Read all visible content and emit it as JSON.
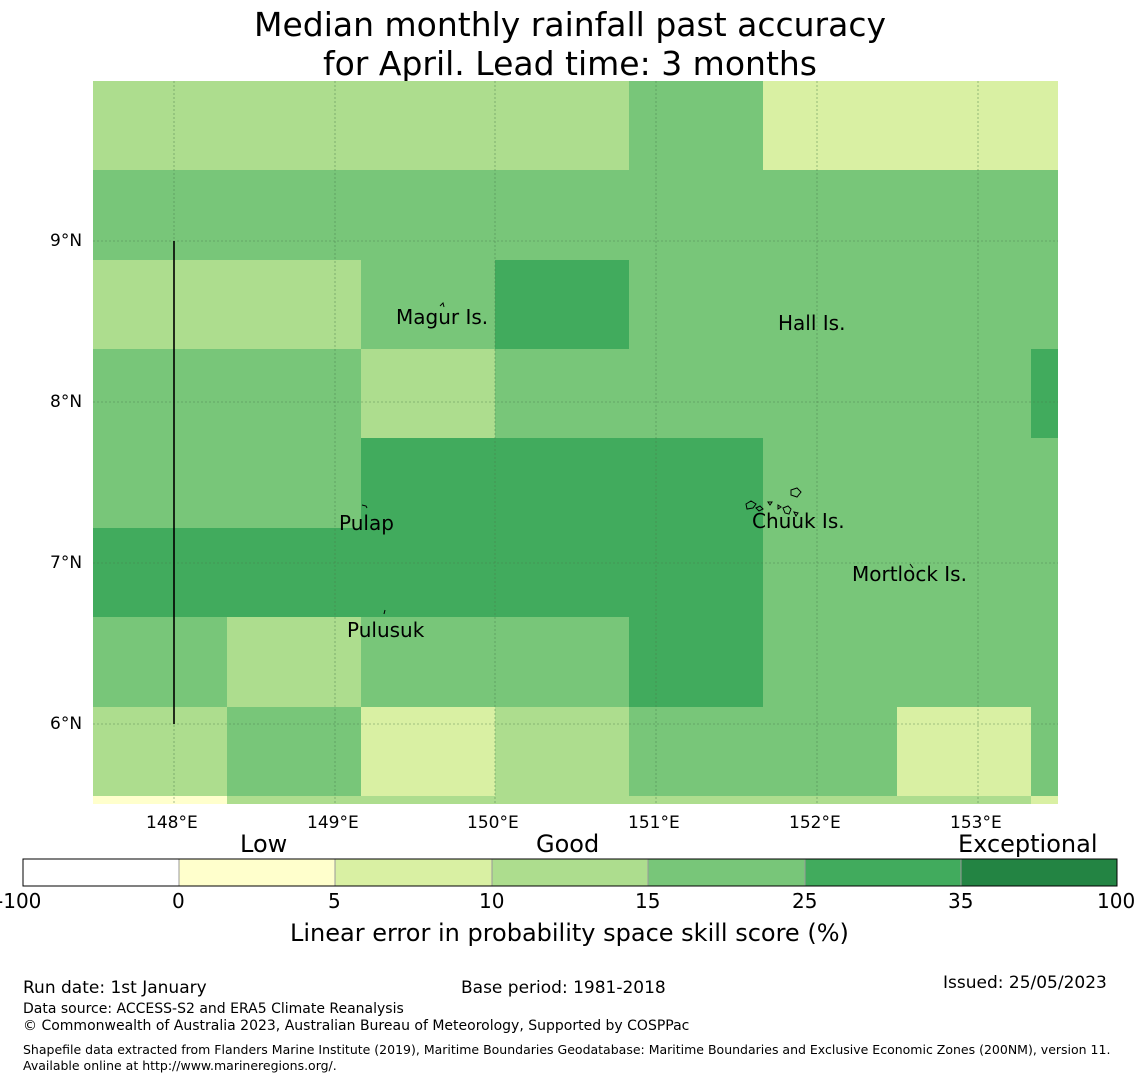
{
  "title_line1": "Median monthly rainfall past accuracy",
  "title_line2": "for April. Lead time: 3 months",
  "colors": {
    "c1": "#ffffcc",
    "c2": "#d9f0a3",
    "c3": "#addd8e",
    "c4": "#78c679",
    "c5": "#41ab5d",
    "c6": "#238443",
    "white": "#ffffff"
  },
  "map": {
    "lat_labels": [
      "9°N",
      "8°N",
      "7°N",
      "6°N"
    ],
    "lon_labels": [
      "148°E",
      "149°E",
      "150°E",
      "151°E",
      "152°E",
      "153°E"
    ],
    "skill_grid": [
      [
        "c3",
        "c3",
        "c3",
        "c3",
        "c4",
        "c2",
        "c2"
      ],
      [
        "c4",
        "c4",
        "c4",
        "c4",
        "c4",
        "c4",
        "c4"
      ],
      [
        "c3",
        "c3",
        "c4",
        "c5",
        "c4",
        "c4",
        "c4"
      ],
      [
        "c4",
        "c4",
        "c3",
        "c4",
        "c4",
        "c4",
        "c4"
      ],
      [
        "c4",
        "c4",
        "c5",
        "c5",
        "c5",
        "c4",
        "c4"
      ],
      [
        "c5",
        "c5",
        "c5",
        "c5",
        "c5",
        "c4",
        "c4"
      ],
      [
        "c4",
        "c3",
        "c4",
        "c4",
        "c5",
        "c4",
        "c4"
      ],
      [
        "c3",
        "c4",
        "c2",
        "c3",
        "c4",
        "c4",
        "c2"
      ]
    ],
    "places": [
      "Magur Is.",
      "Hall Is.",
      "Pulap",
      "Chuuk Is.",
      "Mortlock Is.",
      "Pulusuk"
    ]
  },
  "colorbar": {
    "categories": [
      "Low",
      "Good",
      "Exceptional"
    ],
    "ticks": [
      "-100",
      "0",
      "5",
      "10",
      "15",
      "25",
      "35",
      "100"
    ],
    "label": "Linear error in probability space skill score (%)"
  },
  "footer": {
    "run_date": "Run date: 1st January",
    "base_period": "Base period: 1981-2018",
    "issued": "Issued: 25/05/2023",
    "data_source": "Data source: ACCESS-S2 and ERA5 Climate Reanalysis",
    "copyright": "© Commonwealth of Australia 2023, Australian Bureau of Meteorology, Supported by COSPPac",
    "shapefile": "Shapefile data extracted from Flanders Marine Institute (2019), Maritime Boundaries Geodatabase: Maritime Boundaries and Exclusive Economic Zones (200NM), version 11. Available online at http://www.marineregions.org/."
  }
}
